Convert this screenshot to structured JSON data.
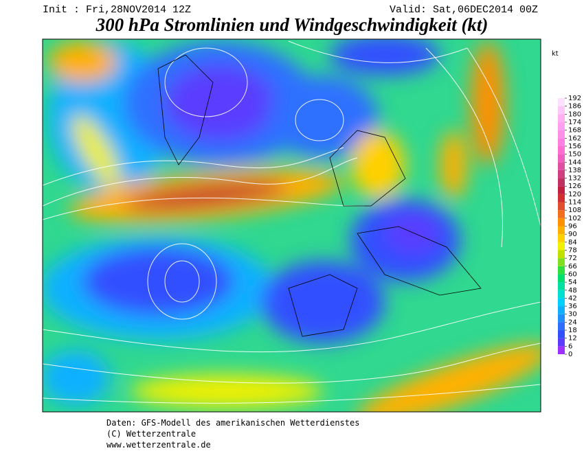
{
  "header": {
    "init": "Init : Fri,28NOV2014 12Z",
    "valid": "Valid: Sat,06DEC2014 00Z",
    "title": "300 hPa Stromlinien und Windgeschwindigkeit (kt)"
  },
  "legend": {
    "unit": "kt",
    "ticks": [
      0,
      6,
      12,
      18,
      24,
      30,
      36,
      42,
      48,
      54,
      60,
      66,
      72,
      78,
      84,
      90,
      96,
      102,
      108,
      114,
      120,
      126,
      132,
      138,
      144,
      150,
      156,
      162,
      168,
      174,
      180,
      186,
      192
    ],
    "colors": [
      "#9b30ff",
      "#5a3cff",
      "#3050ff",
      "#2f6fff",
      "#2090ff",
      "#10b0ff",
      "#00d0ff",
      "#00e0d0",
      "#00e0a0",
      "#00e070",
      "#30e040",
      "#80e020",
      "#c0e000",
      "#f0f000",
      "#ffd000",
      "#ffb000",
      "#ff9000",
      "#f07020",
      "#e05030",
      "#d03030",
      "#c02040",
      "#c03060",
      "#d04080",
      "#e050a0",
      "#f060c0",
      "#ff70d0",
      "#ff80e0",
      "#ff90e8",
      "#ffa0f0",
      "#ffb0f0",
      "#ffc8f8",
      "#ffe0ff"
    ]
  },
  "footer": {
    "source": "Daten: GFS-Modell des amerikanischen Wetterdienstes",
    "copyright": "(C) Wetterzentrale",
    "url": "www.wetterzentrale.de"
  }
}
